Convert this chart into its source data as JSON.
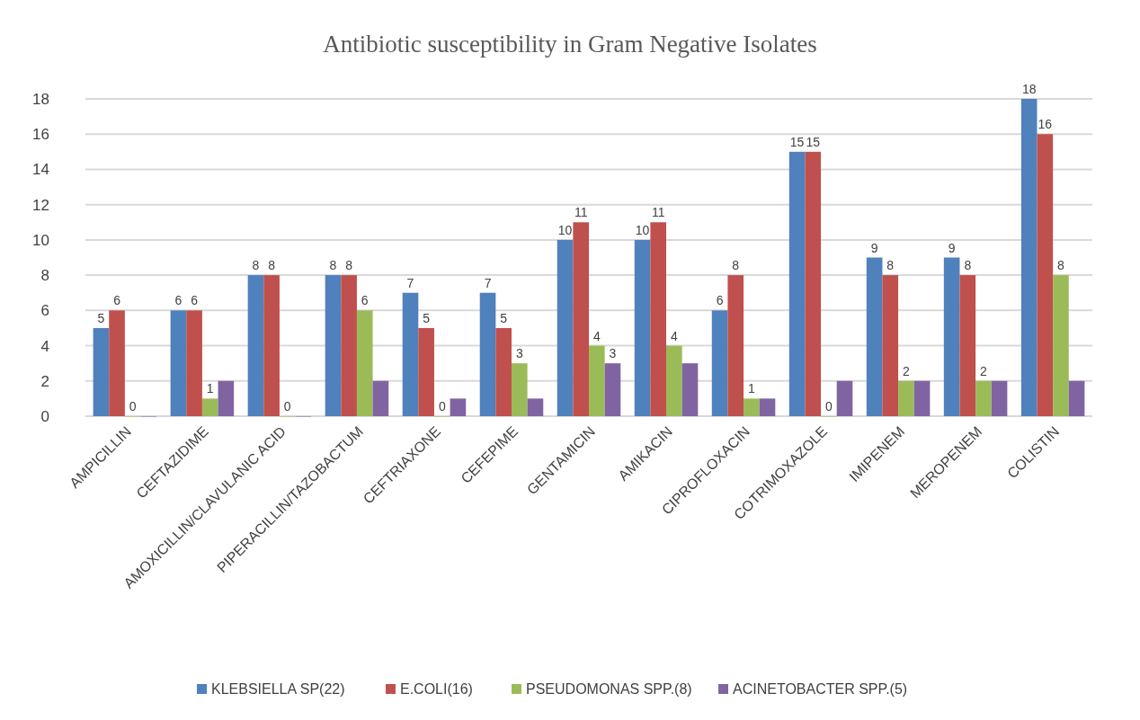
{
  "chart_data": {
    "type": "bar",
    "title": "Antibiotic susceptibility in Gram Negative Isolates",
    "categories": [
      "AMPICILLIN",
      "CEFTAZIDIME",
      "AMOXICILLIN/CLAVULANIC ACID",
      "PIPERACILLIN/TAZOBACTUM",
      "CEFTRIAXONE",
      "CEFEPIME",
      "GENTAMICIN",
      "AMIKACIN",
      "CIPROFLOXACIN",
      "COTRIMOXAZOLE",
      "IMIPENEM",
      "MEROPENEM",
      "COLISTIN"
    ],
    "series": [
      {
        "name": "KLEBSIELLA SP(22)",
        "color": "#4f81bd",
        "values": [
          5,
          6,
          8,
          8,
          7,
          7,
          10,
          10,
          6,
          15,
          9,
          9,
          18
        ],
        "value_labels": [
          "5",
          "6",
          "8",
          "8",
          "7",
          "7",
          "10",
          "10",
          "6",
          "15",
          "9",
          "9",
          "18"
        ]
      },
      {
        "name": "E.COLI(16)",
        "color": "#c0504d",
        "values": [
          6,
          6,
          8,
          8,
          5,
          5,
          11,
          11,
          8,
          15,
          8,
          8,
          16
        ],
        "value_labels": [
          "6",
          "6",
          "8",
          "8",
          "5",
          "5",
          "11",
          "11",
          "8",
          "15",
          "8",
          "8",
          "16"
        ]
      },
      {
        "name": "PSEUDOMONAS SPP.(8)",
        "color": "#9bbb59",
        "values": [
          0,
          1,
          0,
          6,
          0,
          3,
          4,
          4,
          1,
          0,
          2,
          2,
          8
        ],
        "value_labels": [
          "0",
          "1",
          "0",
          "6",
          "0",
          "3",
          "4",
          "4",
          "1",
          "0",
          "2",
          "2",
          "8"
        ]
      },
      {
        "name": "ACINETOBACTER SPP.(5)",
        "color": "#8064a2",
        "values": [
          0,
          2,
          0,
          2,
          1,
          1,
          3,
          3,
          1,
          2,
          2,
          2,
          2
        ],
        "value_labels": [
          null,
          null,
          null,
          null,
          null,
          null,
          "3",
          null,
          null,
          null,
          null,
          null,
          null
        ]
      }
    ],
    "ylim": [
      0,
      18
    ],
    "yticks": [
      0,
      2,
      4,
      6,
      8,
      10,
      12,
      14,
      16,
      18
    ],
    "grid": "y",
    "legend": "bottom"
  }
}
